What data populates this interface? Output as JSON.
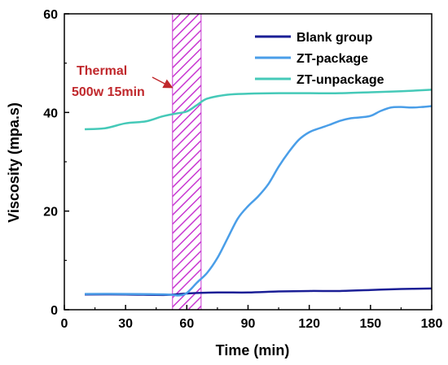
{
  "chart_data": {
    "type": "line",
    "xlabel": "Time (min)",
    "ylabel": "Viscosity (mpa.s)",
    "xlim": [
      0,
      180
    ],
    "ylim": [
      0,
      60
    ],
    "xticks": [
      0,
      30,
      60,
      90,
      120,
      150,
      180
    ],
    "yticks": [
      0,
      20,
      40,
      60
    ],
    "grid": false,
    "legend_position": "top-right",
    "series": [
      {
        "name": "Blank group",
        "color": "#1b1f96",
        "points": [
          [
            10,
            3.1
          ],
          [
            30,
            3.1
          ],
          [
            50,
            3.0
          ],
          [
            60,
            3.3
          ],
          [
            75,
            3.5
          ],
          [
            90,
            3.5
          ],
          [
            105,
            3.7
          ],
          [
            120,
            3.8
          ],
          [
            135,
            3.8
          ],
          [
            150,
            4.0
          ],
          [
            165,
            4.2
          ],
          [
            180,
            4.3
          ]
        ]
      },
      {
        "name": "ZT-package",
        "color": "#4a9ee8",
        "points": [
          [
            10,
            3.2
          ],
          [
            30,
            3.2
          ],
          [
            50,
            3.1
          ],
          [
            56,
            2.9
          ],
          [
            60,
            3.4
          ],
          [
            65,
            5.5
          ],
          [
            70,
            7.5
          ],
          [
            75,
            10.5
          ],
          [
            80,
            14.5
          ],
          [
            85,
            18.5
          ],
          [
            90,
            21.0
          ],
          [
            95,
            23.0
          ],
          [
            100,
            25.5
          ],
          [
            105,
            29.0
          ],
          [
            110,
            32.0
          ],
          [
            115,
            34.5
          ],
          [
            120,
            36.0
          ],
          [
            125,
            36.8
          ],
          [
            130,
            37.5
          ],
          [
            135,
            38.3
          ],
          [
            140,
            38.8
          ],
          [
            145,
            39.0
          ],
          [
            150,
            39.3
          ],
          [
            155,
            40.3
          ],
          [
            160,
            41.0
          ],
          [
            165,
            41.1
          ],
          [
            170,
            41.0
          ],
          [
            175,
            41.1
          ],
          [
            180,
            41.3
          ]
        ]
      },
      {
        "name": "ZT-unpackage",
        "color": "#45c9b8",
        "points": [
          [
            10,
            36.6
          ],
          [
            20,
            36.8
          ],
          [
            30,
            37.8
          ],
          [
            40,
            38.2
          ],
          [
            48,
            39.2
          ],
          [
            55,
            39.8
          ],
          [
            60,
            40.2
          ],
          [
            65,
            41.5
          ],
          [
            70,
            42.8
          ],
          [
            80,
            43.6
          ],
          [
            90,
            43.8
          ],
          [
            105,
            43.9
          ],
          [
            120,
            43.9
          ],
          [
            135,
            43.9
          ],
          [
            150,
            44.1
          ],
          [
            165,
            44.3
          ],
          [
            180,
            44.6
          ]
        ]
      }
    ],
    "shaded_region": {
      "x_range": [
        53,
        67
      ],
      "color": "#c837d1",
      "pattern": "diagonal-hatch"
    },
    "annotations": [
      {
        "lines": [
          "Thermal",
          "500w 15min"
        ],
        "color": "#c0282c"
      }
    ]
  }
}
